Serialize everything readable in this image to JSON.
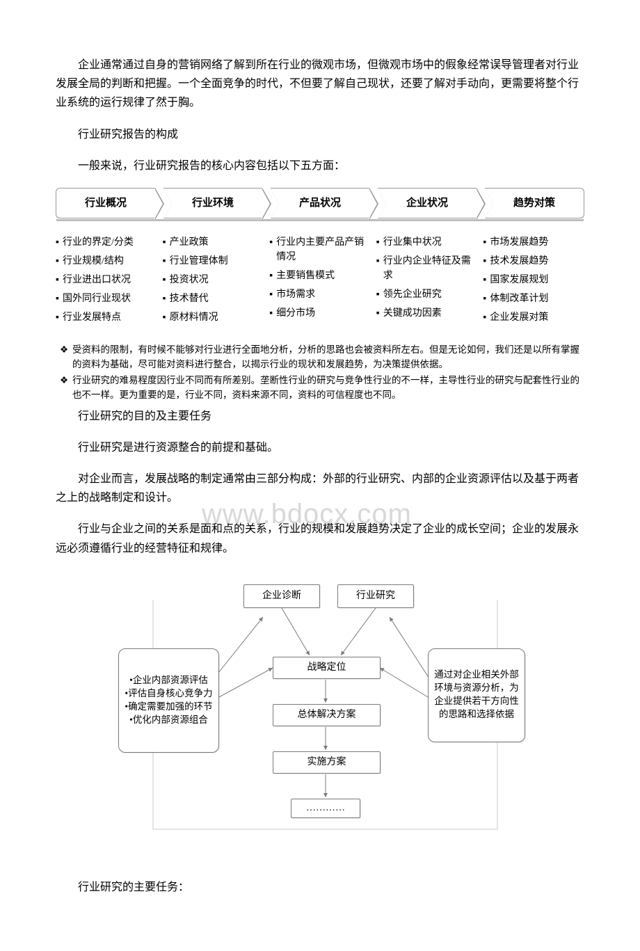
{
  "paragraphs": {
    "p1": "企业通常通过自身的营销网络了解到所在行业的微观市场，但微观市场中的假象经常误导管理者对行业发展全局的判断和把握。一个全面竞争的时代，不但要了解自己现状，还要了解对手动向，更需要将整个行业系统的运行规律了然于胸。",
    "h1": "行业研究报告的构成",
    "p2": "一般来说，行业研究报告的核心内容包括以下五方面：",
    "h2": "行业研究的目的及主要任务",
    "p3": "行业研究是进行资源整合的前提和基础。",
    "p4": "对企业而言，发展战略的制定通常由三部分构成：外部的行业研究、内部的企业资源评估以及基于两者之上的战略制定和设计。",
    "p5": "行业与企业之间的关系是面和点的关系，行业的规模和发展趋势决定了企业的成长空间；企业的发展永远必须遵循行业的经营特征和规律。",
    "h3": "行业研究的主要任务："
  },
  "tabs": [
    "行业概况",
    "行业环境",
    "产品状况",
    "企业状况",
    "趋势对策"
  ],
  "grid": [
    [
      "行业的界定/分类",
      "行业规模/结构",
      "行业进出口状况",
      "国外同行业现状",
      "行业发展特点"
    ],
    [
      "产业政策",
      "行业管理体制",
      "投资状况",
      "技术替代",
      "原材料情况"
    ],
    [
      "行业内主要产品产销情况",
      "主要销售模式",
      "市场需求",
      "细分市场"
    ],
    [
      "行业集中状况",
      "行业内企业特征及需求",
      "领先企业研究",
      "关键成功因素"
    ],
    [
      "市场发展趋势",
      "技术发展趋势",
      "国家发展规划",
      "体制改革计划",
      "企业发展对策"
    ]
  ],
  "grid_bullet": "▪",
  "notes": [
    "受资料的限制，有时候不能够对行业进行全面地分析，分析的思路也会被资料所左右。但是无论如何，我们还是以所有掌握的资料为基础，尽可能对资料进行整合，以揭示行业的现状和发展趋势，为决策提供依据。",
    "行业研究的难易程度因行业不同而有所差别。垄断性行业的研究与竞争性行业的不一样，主导性行业的研究与配套性行业的也不一样。更为重要的是，行业不同，资料来源不同，资料的可信程度也不同。"
  ],
  "note_bullet": "❖",
  "watermark": "www.bdocx.com",
  "flow": {
    "top_left": "企业诊断",
    "top_right": "行业研究",
    "mid1": "战略定位",
    "mid2": "总体解决方案",
    "mid3": "实施方案",
    "mid4": "…………",
    "left_box": "•企业内部资源评估\n•评估自身核心竞争力\n•确定需要加强的环节\n•优化内部资源组合",
    "right_box": "通过对企业相关外部环境与资源分析，为企业提供若干方向性的思路和选择依据",
    "line_color": "#7a7a7a",
    "box_border": "#7a7a7a"
  }
}
